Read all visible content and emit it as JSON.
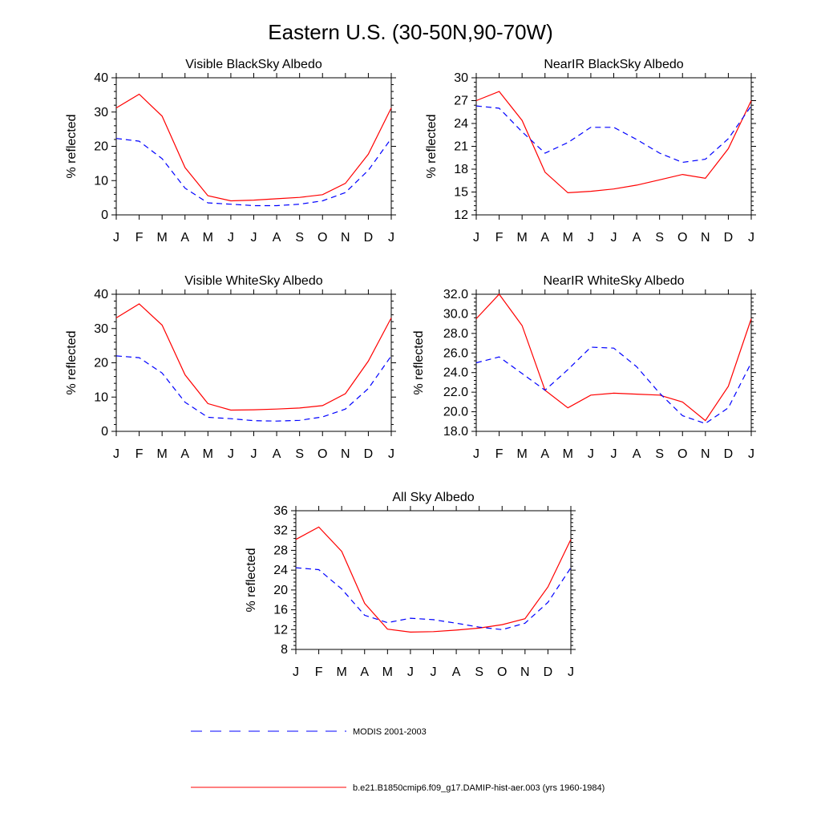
{
  "page_title": "Eastern U.S. (30-50N,90-70W)",
  "legend": {
    "model": "b.e21.B1850cmip6.f09_g17.DAMIP-hist-aer.003 (yrs 1960-1984)",
    "obs": "MODIS 2001-2003"
  },
  "colors": {
    "model": "#ff0000",
    "obs": "#0000ff",
    "axis": "#000000"
  },
  "chart_data": [
    {
      "type": "line",
      "title": "Visible BlackSky Albedo",
      "ylabel": "% reflected",
      "categories": [
        "J",
        "F",
        "M",
        "A",
        "M",
        "J",
        "J",
        "A",
        "S",
        "O",
        "N",
        "D",
        "J"
      ],
      "ylim": [
        0,
        40
      ],
      "yticks": [
        "0",
        "10",
        "20",
        "30",
        "40"
      ],
      "series": [
        {
          "name": "b.e21.B1850cmip6.f09_g17.DAMIP-hist-aer.003 (yrs 1960-1984)",
          "style": "solid",
          "color": "#ff0000",
          "values": [
            31.2,
            35.2,
            28.8,
            13.8,
            5.6,
            4.1,
            4.3,
            4.7,
            5.1,
            5.9,
            9.2,
            17.7,
            31.2
          ]
        },
        {
          "name": "MODIS 2001-2003",
          "style": "dashed",
          "color": "#0000ff",
          "values": [
            22.3,
            21.5,
            16.4,
            7.8,
            3.5,
            3.1,
            2.7,
            2.7,
            3.1,
            4.1,
            6.5,
            13.0,
            22.3
          ]
        }
      ]
    },
    {
      "type": "line",
      "title": "NearIR BlackSky Albedo",
      "ylabel": "% reflected",
      "categories": [
        "J",
        "F",
        "M",
        "A",
        "M",
        "J",
        "J",
        "A",
        "S",
        "O",
        "N",
        "D",
        "J"
      ],
      "ylim": [
        12,
        30
      ],
      "yticks": [
        "12",
        "15",
        "18",
        "21",
        "24",
        "27",
        "30"
      ],
      "series": [
        {
          "name": "b.e21.B1850cmip6.f09_g17.DAMIP-hist-aer.003 (yrs 1960-1984)",
          "style": "solid",
          "color": "#ff0000",
          "values": [
            27.0,
            28.2,
            24.4,
            17.6,
            14.9,
            15.1,
            15.4,
            15.9,
            16.6,
            17.3,
            16.8,
            20.7,
            27.0
          ]
        },
        {
          "name": "MODIS 2001-2003",
          "style": "dashed",
          "color": "#0000ff",
          "values": [
            26.3,
            26.0,
            22.9,
            20.1,
            21.5,
            23.5,
            23.5,
            21.9,
            20.1,
            18.9,
            19.3,
            22.0,
            26.3
          ]
        }
      ]
    },
    {
      "type": "line",
      "title": "Visible WhiteSky Albedo",
      "ylabel": "% reflected",
      "categories": [
        "J",
        "F",
        "M",
        "A",
        "M",
        "J",
        "J",
        "A",
        "S",
        "O",
        "N",
        "D",
        "J"
      ],
      "ylim": [
        0,
        40
      ],
      "yticks": [
        "0",
        "10",
        "20",
        "30",
        "40"
      ],
      "series": [
        {
          "name": "b.e21.B1850cmip6.f09_g17.DAMIP-hist-aer.003 (yrs 1960-1984)",
          "style": "solid",
          "color": "#ff0000",
          "values": [
            33.1,
            37.2,
            31.0,
            16.5,
            8.1,
            6.2,
            6.3,
            6.5,
            6.8,
            7.5,
            11.0,
            20.5,
            33.1
          ]
        },
        {
          "name": "MODIS 2001-2003",
          "style": "dashed",
          "color": "#0000ff",
          "values": [
            22.0,
            21.5,
            17.0,
            8.5,
            4.1,
            3.7,
            3.1,
            3.0,
            3.2,
            4.2,
            6.5,
            12.5,
            22.0
          ]
        }
      ]
    },
    {
      "type": "line",
      "title": "NearIR WhiteSky Albedo",
      "ylabel": "% reflected",
      "categories": [
        "J",
        "F",
        "M",
        "A",
        "M",
        "J",
        "J",
        "A",
        "S",
        "O",
        "N",
        "D",
        "J"
      ],
      "ylim": [
        18,
        32
      ],
      "yticks": [
        "18.0",
        "20.0",
        "22.0",
        "24.0",
        "26.0",
        "28.0",
        "30.0",
        "32.0"
      ],
      "series": [
        {
          "name": "b.e21.B1850cmip6.f09_g17.DAMIP-hist-aer.003 (yrs 1960-1984)",
          "style": "solid",
          "color": "#ff0000",
          "values": [
            29.5,
            32.0,
            28.8,
            22.2,
            20.4,
            21.7,
            21.9,
            21.8,
            21.7,
            21.0,
            19.1,
            22.6,
            29.5
          ]
        },
        {
          "name": "MODIS 2001-2003",
          "style": "dashed",
          "color": "#0000ff",
          "values": [
            25.0,
            25.6,
            23.9,
            22.2,
            24.3,
            26.6,
            26.5,
            24.6,
            21.9,
            19.6,
            18.8,
            20.4,
            25.0
          ]
        }
      ]
    },
    {
      "type": "line",
      "title": "All Sky Albedo",
      "ylabel": "% reflected",
      "categories": [
        "J",
        "F",
        "M",
        "A",
        "M",
        "J",
        "J",
        "A",
        "S",
        "O",
        "N",
        "D",
        "J"
      ],
      "ylim": [
        8,
        36
      ],
      "yticks": [
        "8",
        "12",
        "16",
        "20",
        "24",
        "28",
        "32",
        "36"
      ],
      "series": [
        {
          "name": "b.e21.B1850cmip6.f09_g17.DAMIP-hist-aer.003 (yrs 1960-1984)",
          "style": "solid",
          "color": "#ff0000",
          "values": [
            30.2,
            32.7,
            27.8,
            17.3,
            12.1,
            11.5,
            11.6,
            11.9,
            12.3,
            13.0,
            14.2,
            20.6,
            30.2
          ]
        },
        {
          "name": "MODIS 2001-2003",
          "style": "dashed",
          "color": "#0000ff",
          "values": [
            24.5,
            24.1,
            20.2,
            14.9,
            13.4,
            14.3,
            14.0,
            13.3,
            12.5,
            12.0,
            13.3,
            17.5,
            24.5
          ]
        }
      ]
    }
  ]
}
